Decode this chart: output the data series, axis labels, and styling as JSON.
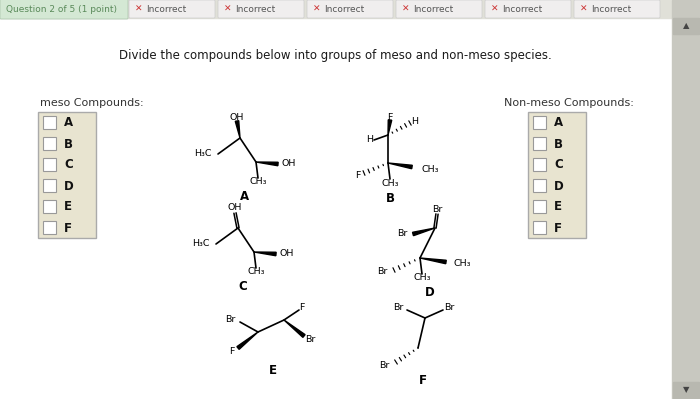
{
  "bg_color": "#e8e8e0",
  "tab_question_text": "Question 2 of 5 (1 point)",
  "tab_question_color": "#5a8a5a",
  "incorrect_text": "Incorrect",
  "incorrect_color": "#cc3333",
  "num_incorrect": 6,
  "main_instruction": "Divide the compounds below into groups of meso and non-meso species.",
  "meso_label": "meso Compounds:",
  "non_meso_label": "Non-meso Compounds:",
  "checkbox_letters": [
    "A",
    "B",
    "C",
    "D",
    "E",
    "F"
  ],
  "checkbox_bg": "#e8e4d0",
  "checkbox_border": "#aaaaaa",
  "page_bg": "#ffffff",
  "tab_bg": "#e0e0d8",
  "q_tab_bg": "#d4e8d4",
  "inc_tab_bg": "#f0eeee",
  "scrollbar_bg": "#c8c8c0",
  "scrollbar_arrow_bg": "#b8b8b0"
}
